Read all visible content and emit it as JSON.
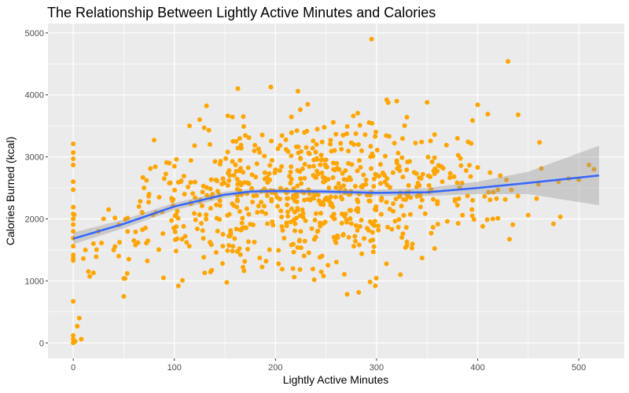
{
  "chart_data": {
    "type": "scatter",
    "title": "The Relationship Between Lightly Active Minutes and Calories",
    "xlabel": "Lightly Active Minutes",
    "ylabel": "Calories Burned (kcal)",
    "xlim": [
      -25,
      545
    ],
    "ylim": [
      -250,
      5150
    ],
    "x_ticks": [
      0,
      100,
      200,
      300,
      400,
      500
    ],
    "y_ticks": [
      0,
      1000,
      2000,
      3000,
      4000,
      5000
    ],
    "grid": true,
    "legend": "none",
    "colors": {
      "points": "#FFA500",
      "trend": "#3366FF",
      "ribbon": "#999999",
      "panel": "#EBEBEB",
      "grid": "#FFFFFF"
    },
    "points": [
      [
        0,
        0
      ],
      [
        0,
        60
      ],
      [
        0,
        120
      ],
      [
        2,
        25
      ],
      [
        4,
        270
      ],
      [
        6,
        400
      ],
      [
        8,
        60
      ],
      [
        0,
        670
      ],
      [
        0,
        1330
      ],
      [
        0,
        1420
      ],
      [
        0,
        1560
      ],
      [
        0,
        1690
      ],
      [
        0,
        1800
      ],
      [
        0,
        1910
      ],
      [
        0,
        2000
      ],
      [
        0,
        2080
      ],
      [
        0,
        2190
      ],
      [
        0,
        2470
      ],
      [
        0,
        2600
      ],
      [
        0,
        2870
      ],
      [
        0,
        2970
      ],
      [
        0,
        3210
      ],
      [
        0,
        3070
      ],
      [
        0,
        1370
      ],
      [
        50,
        750
      ],
      [
        50,
        1040
      ],
      [
        104,
        920
      ],
      [
        108,
        1010
      ],
      [
        130,
        1130
      ],
      [
        295,
        4900
      ],
      [
        430,
        4540
      ],
      [
        440,
        3680
      ],
      [
        410,
        3690
      ],
      [
        400,
        3840
      ],
      [
        380,
        3300
      ],
      [
        475,
        1920
      ],
      [
        480,
        2600
      ],
      [
        490,
        2650
      ],
      [
        510,
        2870
      ],
      [
        515,
        2800
      ],
      [
        500,
        2630
      ],
      [
        450,
        2060
      ],
      [
        420,
        2010
      ],
      [
        415,
        2000
      ],
      [
        405,
        1880
      ],
      [
        420,
        2470
      ],
      [
        460,
        2560
      ],
      [
        390,
        2370
      ],
      [
        370,
        1960
      ],
      [
        345,
        1370
      ],
      [
        335,
        1530
      ],
      [
        330,
        1630
      ],
      [
        325,
        1700
      ],
      [
        320,
        2940
      ],
      [
        310,
        3920
      ],
      [
        320,
        3900
      ],
      [
        330,
        3640
      ],
      [
        350,
        3880
      ],
      [
        355,
        2920
      ],
      [
        360,
        2770
      ],
      [
        365,
        2600
      ],
      [
        380,
        2220
      ],
      [
        385,
        2060
      ],
      [
        395,
        2300
      ],
      [
        400,
        2830
      ],
      [
        20,
        1130
      ],
      [
        15,
        1150
      ],
      [
        10,
        1360
      ],
      [
        12,
        1500
      ],
      [
        20,
        1600
      ],
      [
        25,
        1800
      ],
      [
        30,
        2000
      ],
      [
        35,
        2150
      ],
      [
        40,
        1500
      ],
      [
        45,
        1400
      ],
      [
        55,
        1350
      ],
      [
        60,
        1650
      ],
      [
        65,
        2200
      ],
      [
        70,
        2500
      ],
      [
        75,
        2400
      ],
      [
        80,
        3270
      ],
      [
        85,
        2350
      ],
      [
        90,
        2650
      ],
      [
        95,
        2900
      ],
      [
        100,
        2850
      ],
      [
        110,
        2400
      ],
      [
        115,
        3500
      ],
      [
        120,
        3180
      ],
      [
        125,
        3600
      ]
    ],
    "trend": {
      "x": [
        0,
        50,
        100,
        150,
        175,
        200,
        250,
        300,
        350,
        400,
        450,
        520
      ],
      "y": [
        1680,
        1920,
        2200,
        2390,
        2440,
        2450,
        2440,
        2420,
        2430,
        2500,
        2580,
        2700
      ],
      "ci_lower": [
        1590,
        1850,
        2140,
        2340,
        2400,
        2410,
        2400,
        2370,
        2370,
        2400,
        2400,
        2220
      ],
      "ci_upper": [
        1780,
        1990,
        2260,
        2440,
        2480,
        2490,
        2480,
        2470,
        2500,
        2600,
        2760,
        3180
      ]
    }
  }
}
